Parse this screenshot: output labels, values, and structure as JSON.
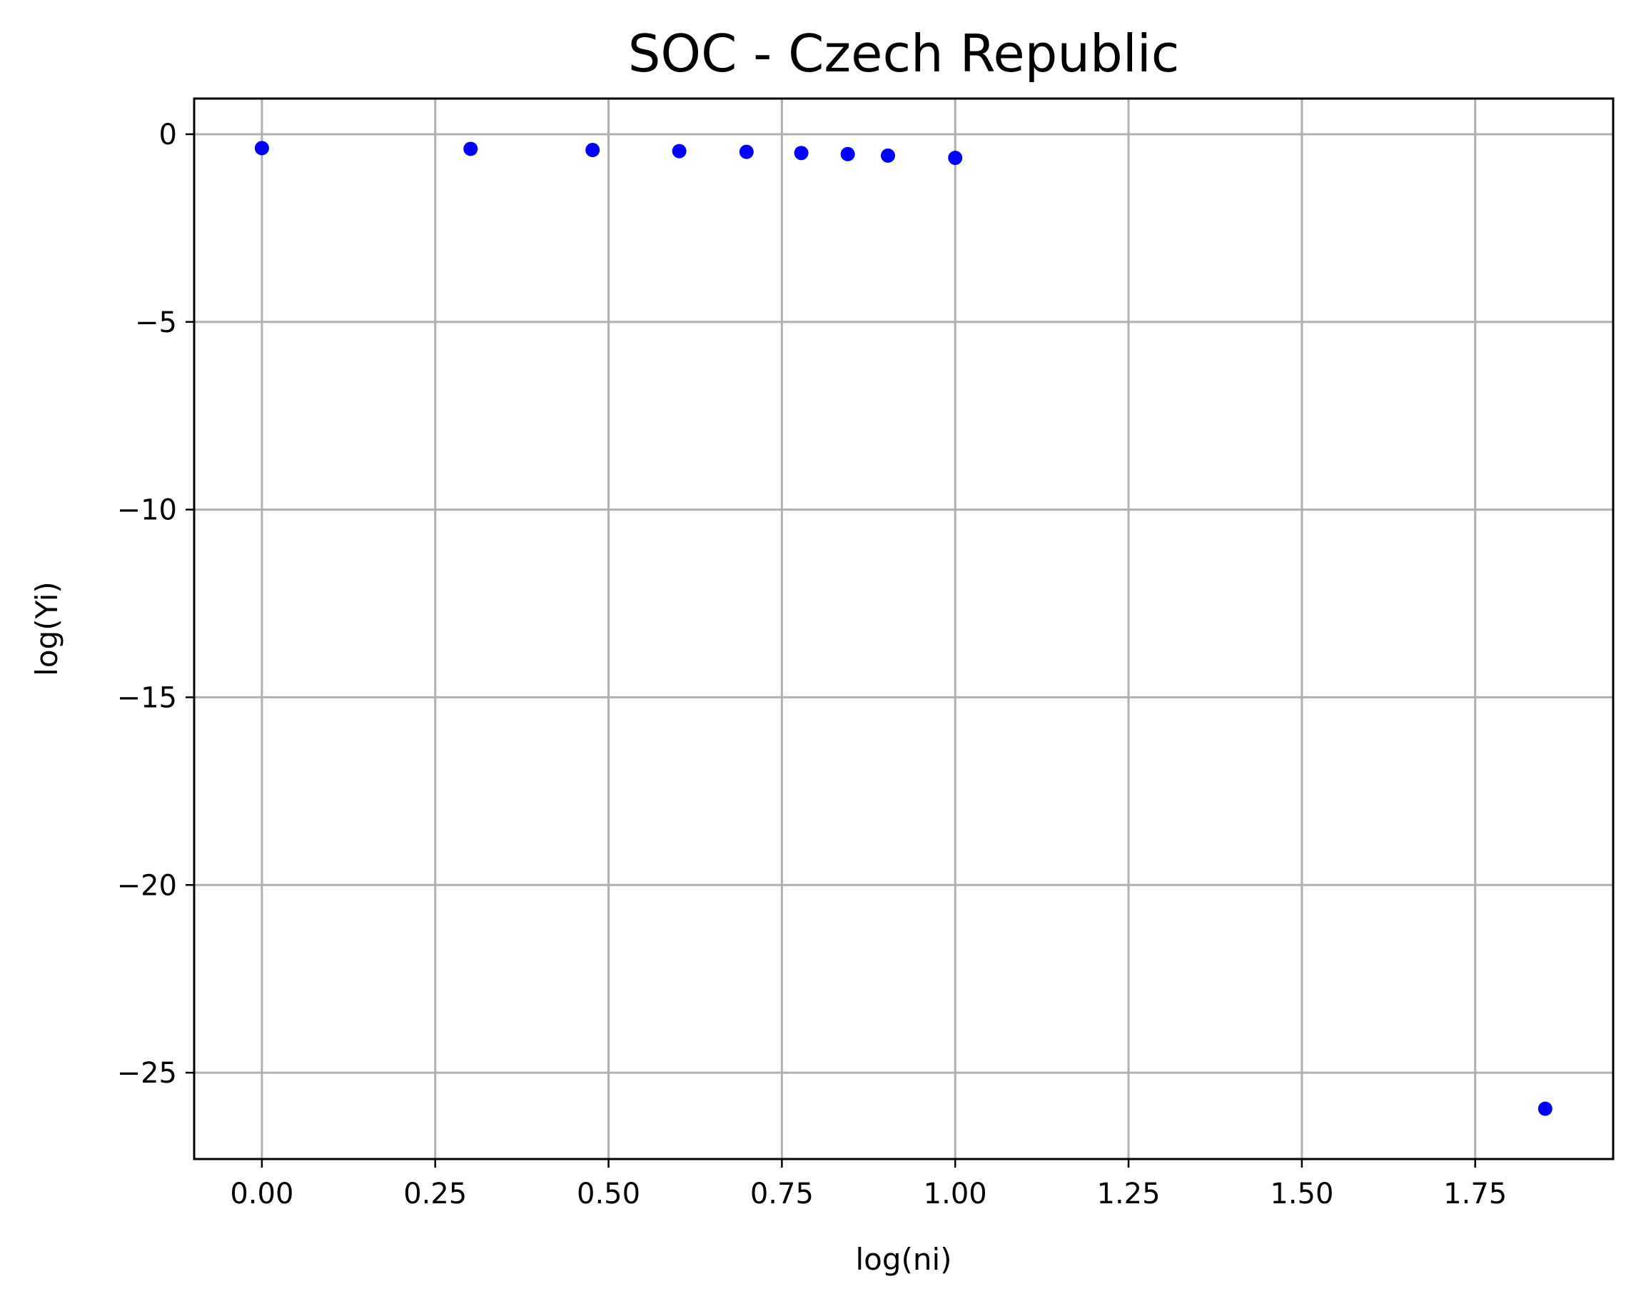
{
  "chart_data": {
    "type": "scatter",
    "title": "SOC - Czech Republic",
    "xlabel": "log(ni)",
    "ylabel": "log(Yi)",
    "xlim": [
      -0.0977,
      1.949
    ],
    "ylim": [
      -27.3,
      0.95
    ],
    "grid": true,
    "marker_color": "#0000ff",
    "x_ticks": [
      {
        "value": 0.0,
        "label": "0.00"
      },
      {
        "value": 0.25,
        "label": "0.25"
      },
      {
        "value": 0.5,
        "label": "0.50"
      },
      {
        "value": 0.75,
        "label": "0.75"
      },
      {
        "value": 1.0,
        "label": "1.00"
      },
      {
        "value": 1.25,
        "label": "1.25"
      },
      {
        "value": 1.5,
        "label": "1.50"
      },
      {
        "value": 1.75,
        "label": "1.75"
      }
    ],
    "y_ticks": [
      {
        "value": 0,
        "label": "0"
      },
      {
        "value": -5,
        "label": "−5"
      },
      {
        "value": -10,
        "label": "−10"
      },
      {
        "value": -15,
        "label": "−15"
      },
      {
        "value": -20,
        "label": "−20"
      },
      {
        "value": -25,
        "label": "−25"
      }
    ],
    "series": [
      {
        "points": [
          {
            "x": 0.0,
            "y": -0.37
          },
          {
            "x": 0.301,
            "y": -0.39
          },
          {
            "x": 0.477,
            "y": -0.42
          },
          {
            "x": 0.602,
            "y": -0.45
          },
          {
            "x": 0.699,
            "y": -0.47
          },
          {
            "x": 0.778,
            "y": -0.5
          },
          {
            "x": 0.845,
            "y": -0.53
          },
          {
            "x": 0.903,
            "y": -0.57
          },
          {
            "x": 1.0,
            "y": -0.63
          },
          {
            "x": 1.851,
            "y": -25.96
          }
        ]
      }
    ]
  }
}
